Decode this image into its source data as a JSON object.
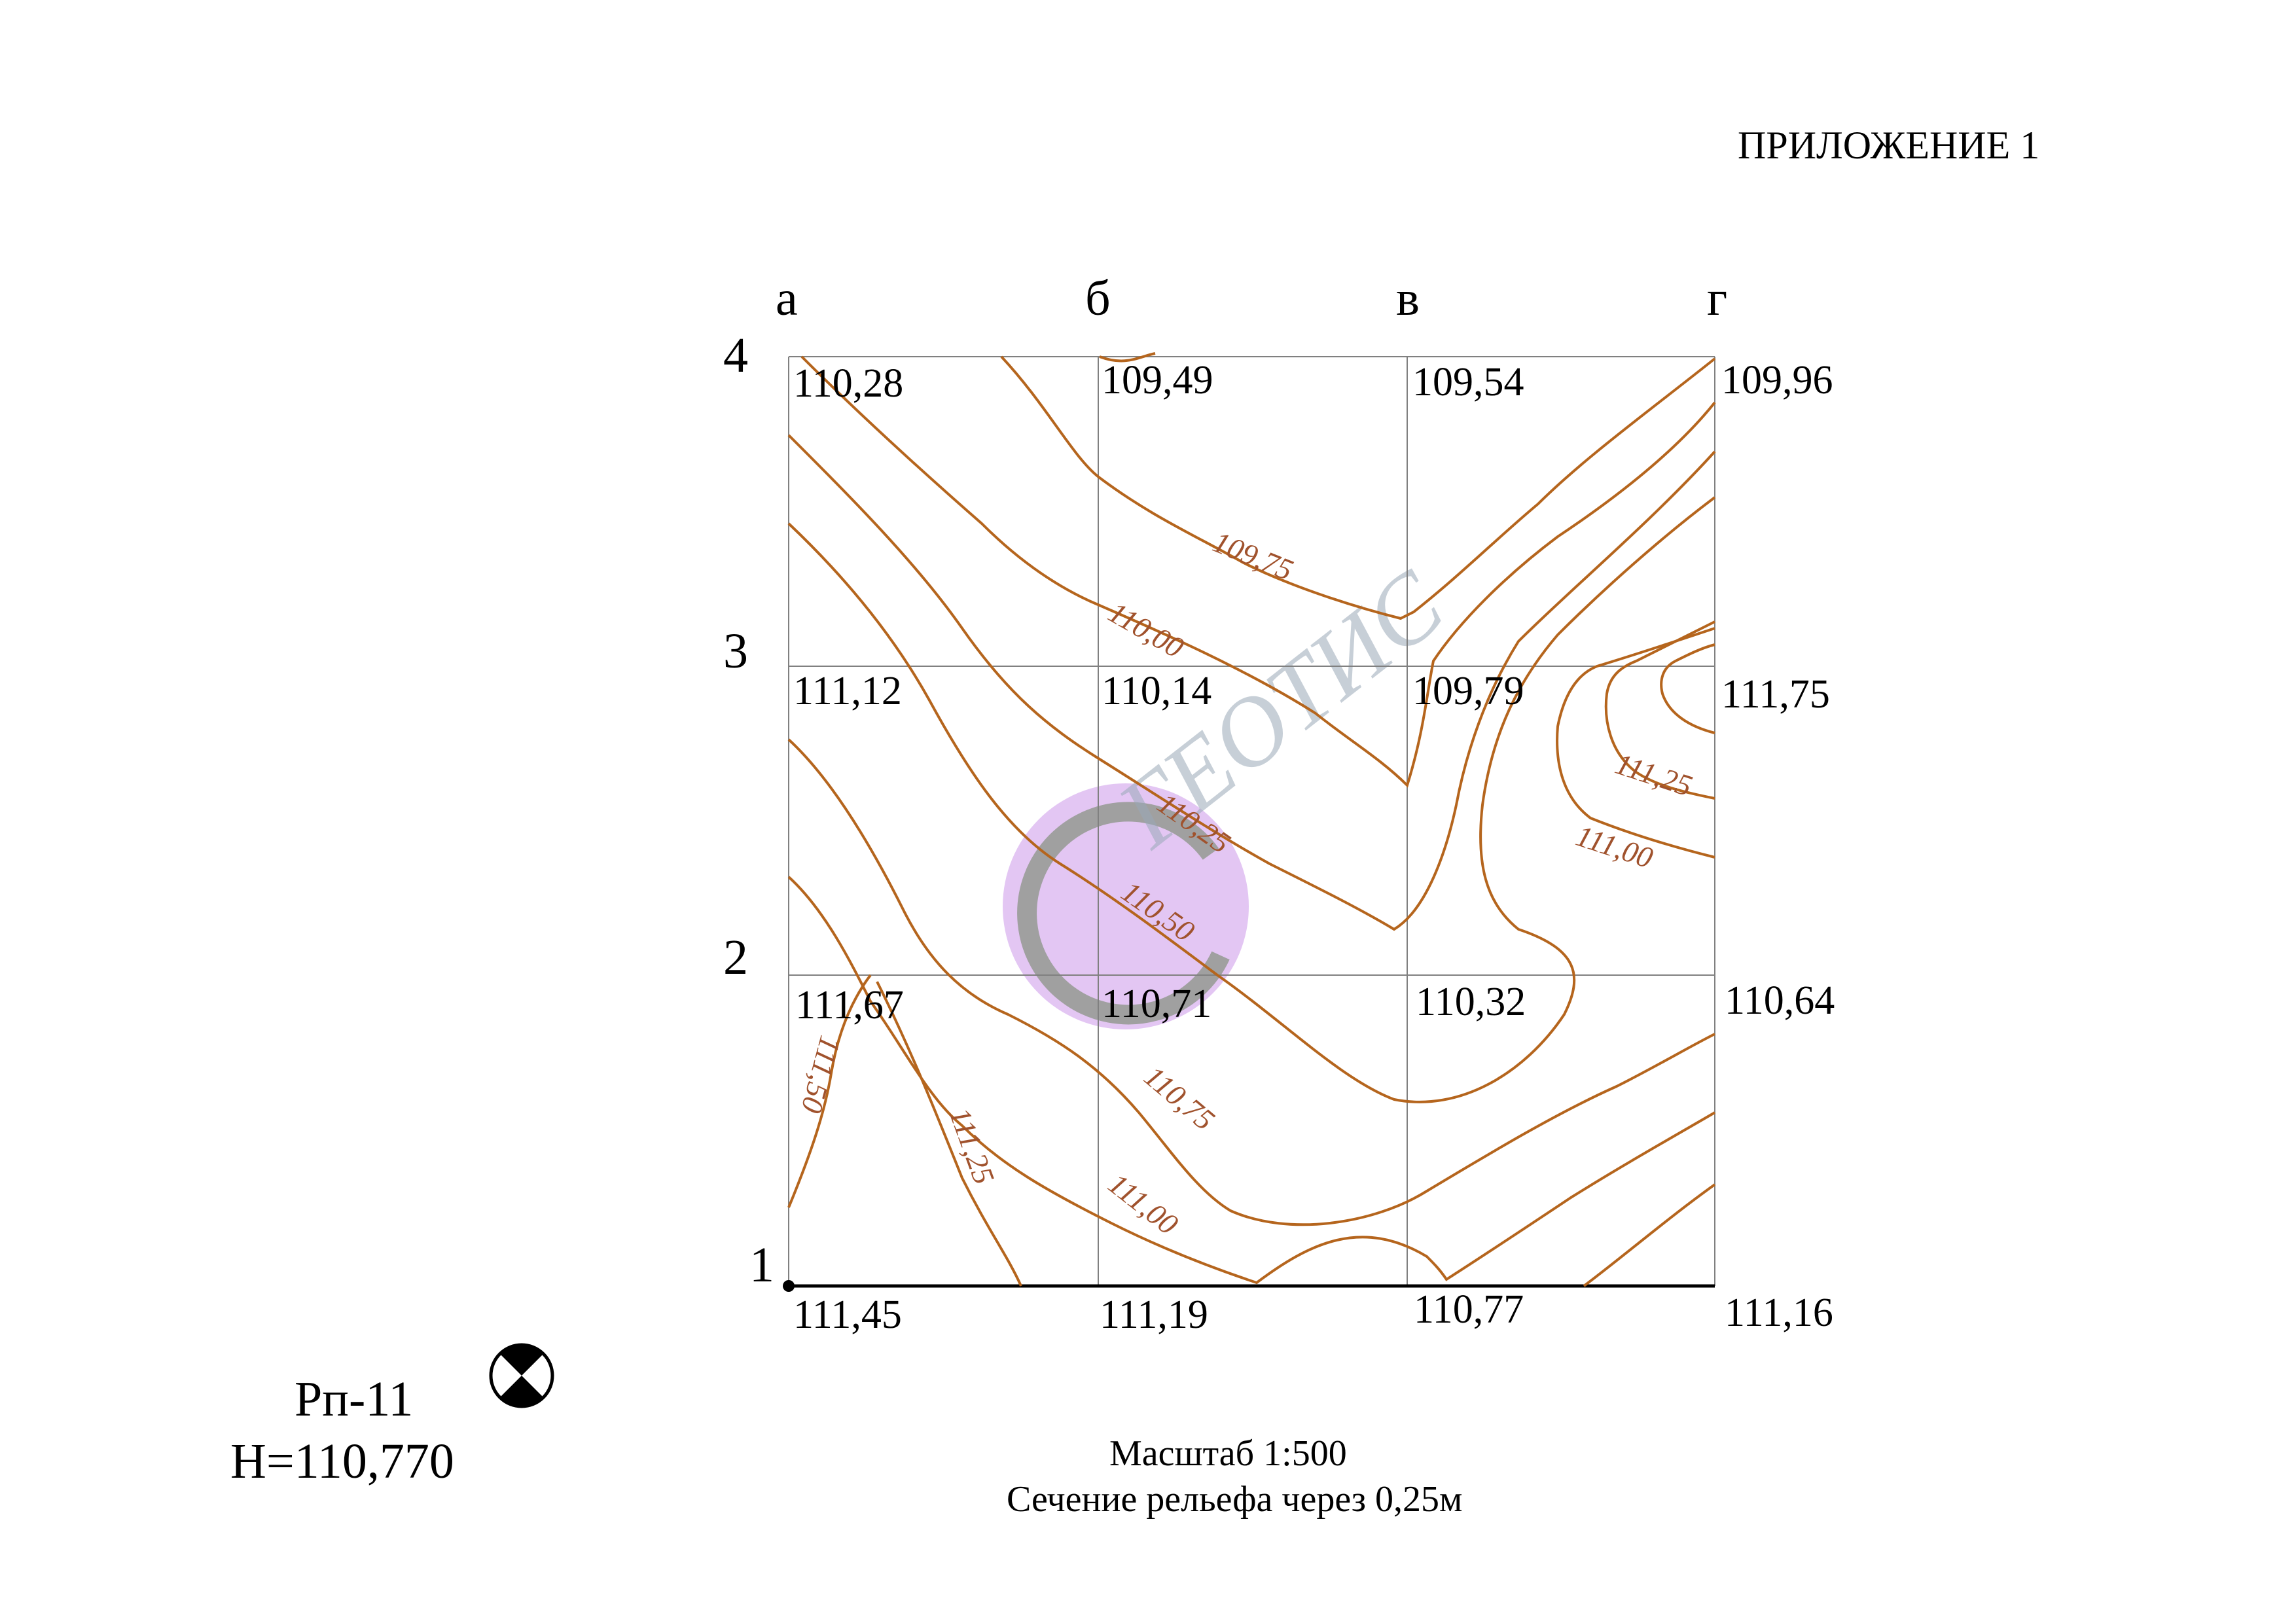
{
  "header": {
    "appendix_label": "ПРИЛОЖЕНИЕ 1"
  },
  "grid": {
    "column_labels": [
      "а",
      "б",
      "в",
      "г"
    ],
    "row_labels": [
      "4",
      "3",
      "2",
      "1"
    ],
    "elevations": {
      "row4": [
        "110,28",
        "109,49",
        "109,54",
        "109,96"
      ],
      "row3": [
        "111,12",
        "110,14",
        "109,79",
        "111,75"
      ],
      "row2": [
        "111,67",
        "110,71",
        "110,32",
        "110,64"
      ],
      "row1": [
        "111,45",
        "111,19",
        "110,77",
        "111,16"
      ]
    }
  },
  "contour_labels": [
    "109,75",
    "110,00",
    "110,25",
    "110,50",
    "110,75",
    "111,00",
    "111,25",
    "111,50",
    "111,25",
    "111,00"
  ],
  "benchmark": {
    "name": "Рп-11",
    "height": "Н=110,770"
  },
  "footer": {
    "scale": "Масштаб 1:500",
    "relief_interval": "Сечение рельефа через 0,25м"
  },
  "watermark": {
    "text": "ГЕОТИС"
  },
  "colors": {
    "contour": "#b5651d",
    "grid": "#808080",
    "text": "#000000",
    "watermark_circle": "#d9b3ef"
  }
}
